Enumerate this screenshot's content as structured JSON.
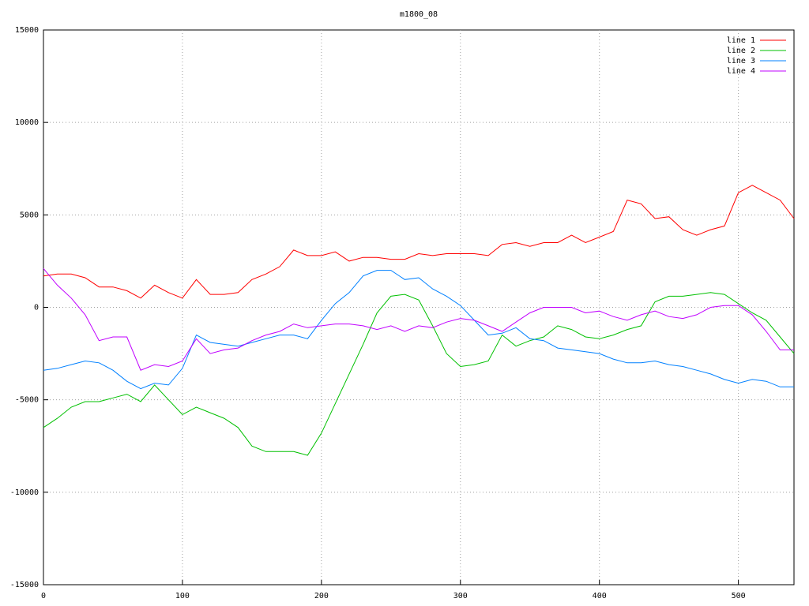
{
  "chart_data": {
    "type": "line",
    "title": "m1800_08",
    "x": [
      0,
      10,
      20,
      30,
      40,
      50,
      60,
      70,
      80,
      90,
      100,
      110,
      120,
      130,
      140,
      150,
      160,
      170,
      180,
      190,
      200,
      210,
      220,
      230,
      240,
      250,
      260,
      270,
      280,
      290,
      300,
      310,
      320,
      330,
      340,
      350,
      360,
      370,
      380,
      390,
      400,
      410,
      420,
      430,
      440,
      450,
      460,
      470,
      480,
      490,
      500,
      510,
      520,
      530,
      540
    ],
    "series": [
      {
        "name": "line 1",
        "color": "#ff0000",
        "values": [
          1700,
          1800,
          1800,
          1600,
          1100,
          1100,
          900,
          500,
          1200,
          800,
          500,
          1500,
          700,
          700,
          800,
          1500,
          1800,
          2200,
          3100,
          2800,
          2800,
          3000,
          2500,
          2700,
          2700,
          2600,
          2600,
          2900,
          2800,
          2900,
          2900,
          2900,
          2800,
          3400,
          3500,
          3300,
          3500,
          3500,
          3900,
          3500,
          3800,
          4100,
          5800,
          5600,
          4800,
          4900,
          4200,
          3900,
          4200,
          4400,
          6200,
          6600,
          6200,
          5800,
          4800
        ]
      },
      {
        "name": "line 2",
        "color": "#00c000",
        "values": [
          -6500,
          -6000,
          -5400,
          -5100,
          -5100,
          -4900,
          -4700,
          -5100,
          -4200,
          -5000,
          -5800,
          -5400,
          -5700,
          -6000,
          -6500,
          -7500,
          -7800,
          -7800,
          -7800,
          -8000,
          -6800,
          -5200,
          -3600,
          -2000,
          -300,
          600,
          700,
          400,
          -1000,
          -2500,
          -3200,
          -3100,
          -2900,
          -1500,
          -2100,
          -1800,
          -1600,
          -1000,
          -1200,
          -1600,
          -1700,
          -1500,
          -1200,
          -1000,
          300,
          600,
          600,
          700,
          800,
          700,
          200,
          -300,
          -700,
          -1600,
          -2500
        ]
      },
      {
        "name": "line 3",
        "color": "#0080ff",
        "values": [
          -3400,
          -3300,
          -3100,
          -2900,
          -3000,
          -3400,
          -4000,
          -4400,
          -4100,
          -4200,
          -3300,
          -1500,
          -1900,
          -2000,
          -2100,
          -1900,
          -1700,
          -1500,
          -1500,
          -1700,
          -700,
          200,
          800,
          1700,
          2000,
          2000,
          1500,
          1600,
          1000,
          600,
          100,
          -700,
          -1500,
          -1400,
          -1100,
          -1700,
          -1800,
          -2200,
          -2300,
          -2400,
          -2500,
          -2800,
          -3000,
          -3000,
          -2900,
          -3100,
          -3200,
          -3400,
          -3600,
          -3900,
          -4100,
          -3900,
          -4000,
          -4300,
          -4300
        ]
      },
      {
        "name": "line 4",
        "color": "#c000ff",
        "values": [
          2100,
          1200,
          500,
          -400,
          -1800,
          -1600,
          -1600,
          -3400,
          -3100,
          -3200,
          -2900,
          -1700,
          -2500,
          -2300,
          -2200,
          -1800,
          -1500,
          -1300,
          -900,
          -1100,
          -1000,
          -900,
          -900,
          -1000,
          -1200,
          -1000,
          -1300,
          -1000,
          -1100,
          -800,
          -600,
          -700,
          -1000,
          -1300,
          -800,
          -300,
          0,
          0,
          0,
          -300,
          -200,
          -500,
          -700,
          -400,
          -200,
          -500,
          -600,
          -400,
          0,
          100,
          100,
          -400,
          -1300,
          -2300,
          -2300
        ]
      }
    ],
    "xlim": [
      0,
      540
    ],
    "ylim": [
      -15000,
      15000
    ],
    "xticks": [
      0,
      100,
      200,
      300,
      400,
      500
    ],
    "yticks": [
      -15000,
      -10000,
      -5000,
      0,
      5000,
      10000,
      15000
    ],
    "grid": true,
    "legend": "top-right"
  }
}
